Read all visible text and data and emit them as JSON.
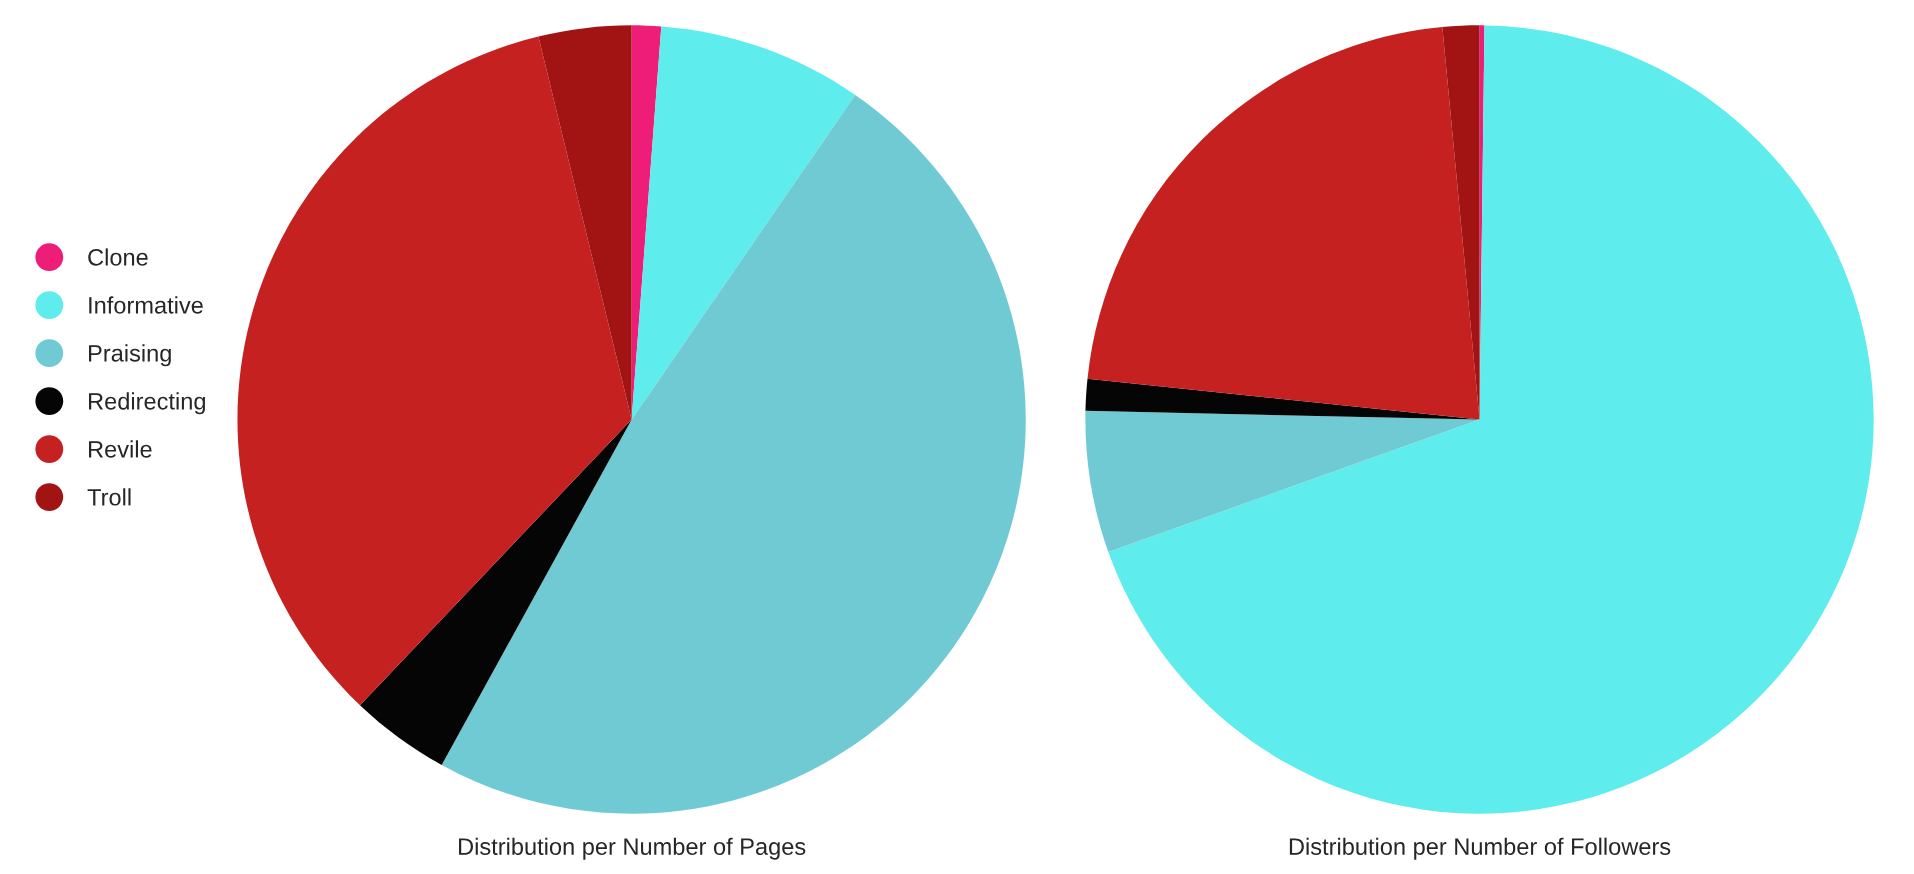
{
  "chart_data": [
    {
      "type": "pie",
      "title": "Distribution per Number of Pages",
      "categories": [
        "Clone",
        "Informative",
        "Praising",
        "Redirecting",
        "Revile",
        "Troll"
      ],
      "values": [
        1.2,
        8.4,
        48.4,
        4.1,
        34.1,
        3.8
      ],
      "colors": [
        "#ee1e78",
        "#5fecec",
        "#70cad4",
        "#050505",
        "#c62121",
        "#a21414"
      ],
      "legend": "left"
    },
    {
      "type": "pie",
      "title": "Distribution per Number of Followers",
      "categories": [
        null,
        null,
        null,
        null,
        null,
        null
      ],
      "values": [
        0.2,
        69.2,
        5.8,
        1.3,
        21.8,
        1.5
      ],
      "colors": [
        "#ee1e78",
        "#5fecec",
        "#70cad4",
        "#050505",
        "#c62121",
        "#a21414"
      ]
    }
  ]
}
